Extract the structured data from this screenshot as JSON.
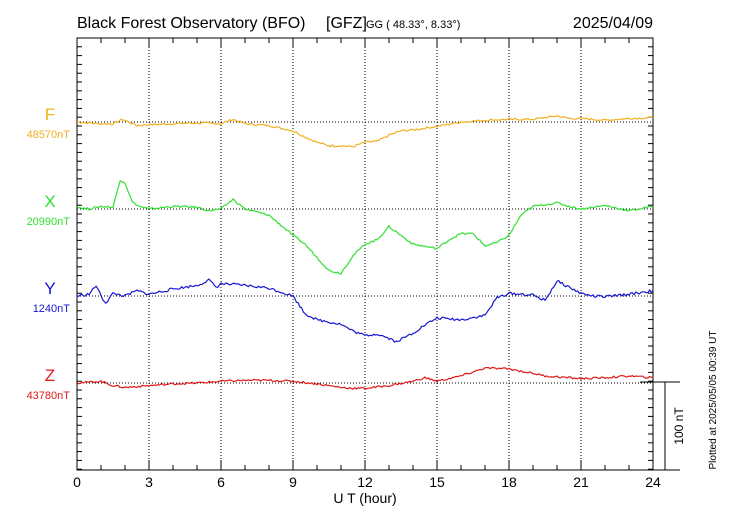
{
  "header": {
    "observatory": "Black Forest Observatory (BFO)",
    "institute": "[GFZ]",
    "coords": "GG ( 48.33°,   8.33°)",
    "date": "2025/04/09"
  },
  "plotted_note": "Plotted at 2025/05/05 00:39 UT",
  "scale_label": "100 nT",
  "chart_data": {
    "type": "line",
    "title": "Black Forest Observatory (BFO)",
    "xlabel": "U T (hour)",
    "ylabel": "",
    "xlim": [
      0,
      24
    ],
    "xticks": [
      "0",
      "3",
      "6",
      "9",
      "12",
      "15",
      "18",
      "21",
      "24"
    ],
    "scale_bar_nT": 100,
    "grid": true,
    "series": [
      {
        "name": "F",
        "baseline_label": "48570nT",
        "color": "#f0b020",
        "baseline_nT": 48570,
        "x": [
          0,
          0.5,
          1,
          1.5,
          1.9,
          2.5,
          3,
          4,
          5,
          6,
          6.5,
          7,
          8,
          9,
          9.5,
          10,
          10.5,
          11,
          11.5,
          12,
          12.5,
          13,
          13.5,
          14,
          15,
          16,
          17,
          18,
          19,
          20,
          20.5,
          21,
          22,
          23,
          24
        ],
        "values": [
          48570,
          48569,
          48568,
          48568,
          48573,
          48566,
          48567,
          48568,
          48569,
          48568,
          48573,
          48568,
          48566,
          48560,
          48553,
          48547,
          48543,
          48543,
          48542,
          48547,
          48548,
          48555,
          48560,
          48561,
          48565,
          48570,
          48572,
          48573,
          48573,
          48577,
          48574,
          48574,
          48572,
          48574,
          48575
        ]
      },
      {
        "name": "X",
        "baseline_label": "20990nT",
        "color": "#30e030",
        "baseline_nT": 20990,
        "x": [
          0,
          0.5,
          1,
          1.5,
          1.8,
          2,
          2.3,
          2.6,
          3,
          4,
          5,
          5.5,
          6,
          6.5,
          7,
          8,
          9,
          9.5,
          10,
          10.5,
          11,
          11.5,
          12,
          12.5,
          13,
          13.5,
          14,
          15,
          15.5,
          16,
          16.5,
          17,
          17.5,
          18,
          18.5,
          19,
          20,
          20.5,
          21,
          22,
          23,
          24
        ],
        "values": [
          20992,
          20990,
          20993,
          20992,
          21023,
          21020,
          20998,
          20993,
          20990,
          20993,
          20992,
          20988,
          20990,
          21001,
          20990,
          20983,
          20960,
          20950,
          20935,
          20920,
          20917,
          20937,
          20950,
          20955,
          20970,
          20960,
          20950,
          20945,
          20955,
          20962,
          20962,
          20948,
          20952,
          20960,
          20983,
          20993,
          20997,
          20993,
          20990,
          20994,
          20988,
          20993
        ]
      },
      {
        "name": "Y",
        "baseline_label": "1240nT",
        "color": "#1818d0",
        "baseline_nT": 1240,
        "x": [
          0,
          0.5,
          0.8,
          1,
          1.2,
          1.5,
          2,
          2.5,
          3,
          4,
          5,
          5.5,
          5.8,
          6,
          7,
          8,
          9,
          9.5,
          10,
          11,
          11.5,
          12,
          12.5,
          13,
          13.3,
          13.6,
          14,
          14.5,
          15,
          16,
          17,
          17.5,
          18,
          19,
          19.5,
          20,
          20.5,
          21,
          21.5,
          22,
          23,
          24
        ],
        "values": [
          1240,
          1242,
          1252,
          1240,
          1232,
          1243,
          1240,
          1246,
          1242,
          1248,
          1252,
          1258,
          1250,
          1254,
          1252,
          1249,
          1240,
          1220,
          1213,
          1208,
          1200,
          1195,
          1197,
          1192,
          1188,
          1192,
          1198,
          1207,
          1215,
          1213,
          1218,
          1238,
          1243,
          1241,
          1235,
          1257,
          1250,
          1243,
          1240,
          1239,
          1242,
          1246
        ]
      },
      {
        "name": "Z",
        "baseline_label": "43780nT",
        "color": "#e01818",
        "baseline_nT": 43780,
        "x": [
          0,
          1,
          1.5,
          2,
          3,
          4,
          5,
          6,
          7,
          8,
          9,
          10,
          11,
          11.5,
          12,
          13,
          14,
          14.5,
          15,
          15.5,
          16,
          17,
          18,
          19,
          19.5,
          20,
          21,
          22,
          23,
          24
        ],
        "values": [
          43780,
          43782,
          43777,
          43775,
          43777,
          43779,
          43780,
          43782,
          43783,
          43783,
          43782,
          43779,
          43775,
          43774,
          43774,
          43777,
          43782,
          43786,
          43782,
          43785,
          43788,
          43797,
          43796,
          43791,
          43788,
          43787,
          43785,
          43786,
          43788,
          43786
        ]
      }
    ]
  }
}
